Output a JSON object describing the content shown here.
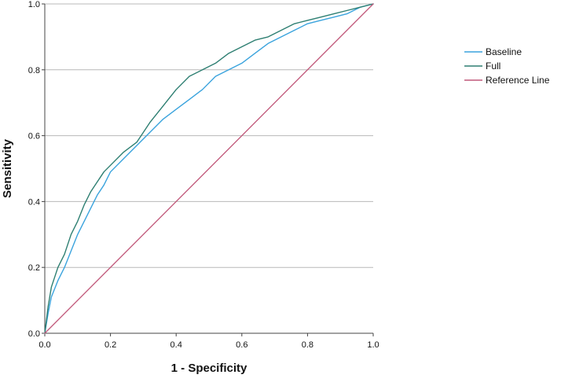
{
  "chart_data": {
    "type": "line",
    "title": "",
    "xlabel": "1 - Specificity",
    "ylabel": "Sensitivity",
    "xlim": [
      0,
      1
    ],
    "ylim": [
      0,
      1
    ],
    "x_ticks": [
      "0.0",
      "0.2",
      "0.4",
      "0.6",
      "0.8",
      "1.0"
    ],
    "y_ticks": [
      "0.0",
      "0.2",
      "0.4",
      "0.6",
      "0.8",
      "1.0"
    ],
    "grid": "horizontal",
    "legend_position": "right",
    "series": [
      {
        "name": "Baseline",
        "color": "#3aa3dd",
        "points": [
          [
            0,
            0
          ],
          [
            0.01,
            0.06
          ],
          [
            0.02,
            0.11
          ],
          [
            0.04,
            0.16
          ],
          [
            0.06,
            0.2
          ],
          [
            0.08,
            0.25
          ],
          [
            0.1,
            0.3
          ],
          [
            0.12,
            0.34
          ],
          [
            0.14,
            0.38
          ],
          [
            0.16,
            0.42
          ],
          [
            0.18,
            0.45
          ],
          [
            0.2,
            0.49
          ],
          [
            0.24,
            0.53
          ],
          [
            0.28,
            0.57
          ],
          [
            0.32,
            0.61
          ],
          [
            0.36,
            0.65
          ],
          [
            0.4,
            0.68
          ],
          [
            0.44,
            0.71
          ],
          [
            0.48,
            0.74
          ],
          [
            0.52,
            0.78
          ],
          [
            0.56,
            0.8
          ],
          [
            0.6,
            0.82
          ],
          [
            0.64,
            0.85
          ],
          [
            0.68,
            0.88
          ],
          [
            0.72,
            0.9
          ],
          [
            0.76,
            0.92
          ],
          [
            0.8,
            0.94
          ],
          [
            0.84,
            0.95
          ],
          [
            0.88,
            0.96
          ],
          [
            0.92,
            0.97
          ],
          [
            0.96,
            0.99
          ],
          [
            1,
            1
          ]
        ]
      },
      {
        "name": "Full",
        "color": "#2e7f72",
        "points": [
          [
            0,
            0
          ],
          [
            0.01,
            0.08
          ],
          [
            0.02,
            0.14
          ],
          [
            0.04,
            0.2
          ],
          [
            0.06,
            0.24
          ],
          [
            0.08,
            0.3
          ],
          [
            0.1,
            0.34
          ],
          [
            0.12,
            0.39
          ],
          [
            0.14,
            0.43
          ],
          [
            0.16,
            0.46
          ],
          [
            0.18,
            0.49
          ],
          [
            0.2,
            0.51
          ],
          [
            0.24,
            0.55
          ],
          [
            0.28,
            0.58
          ],
          [
            0.32,
            0.64
          ],
          [
            0.36,
            0.69
          ],
          [
            0.4,
            0.74
          ],
          [
            0.44,
            0.78
          ],
          [
            0.48,
            0.8
          ],
          [
            0.52,
            0.82
          ],
          [
            0.56,
            0.85
          ],
          [
            0.6,
            0.87
          ],
          [
            0.64,
            0.89
          ],
          [
            0.68,
            0.9
          ],
          [
            0.72,
            0.92
          ],
          [
            0.76,
            0.94
          ],
          [
            0.8,
            0.95
          ],
          [
            0.84,
            0.96
          ],
          [
            0.88,
            0.97
          ],
          [
            0.92,
            0.98
          ],
          [
            0.96,
            0.99
          ],
          [
            1,
            1
          ]
        ]
      },
      {
        "name": "Reference Line",
        "color": "#c1587a",
        "points": [
          [
            0,
            0
          ],
          [
            1,
            1
          ]
        ]
      }
    ]
  }
}
